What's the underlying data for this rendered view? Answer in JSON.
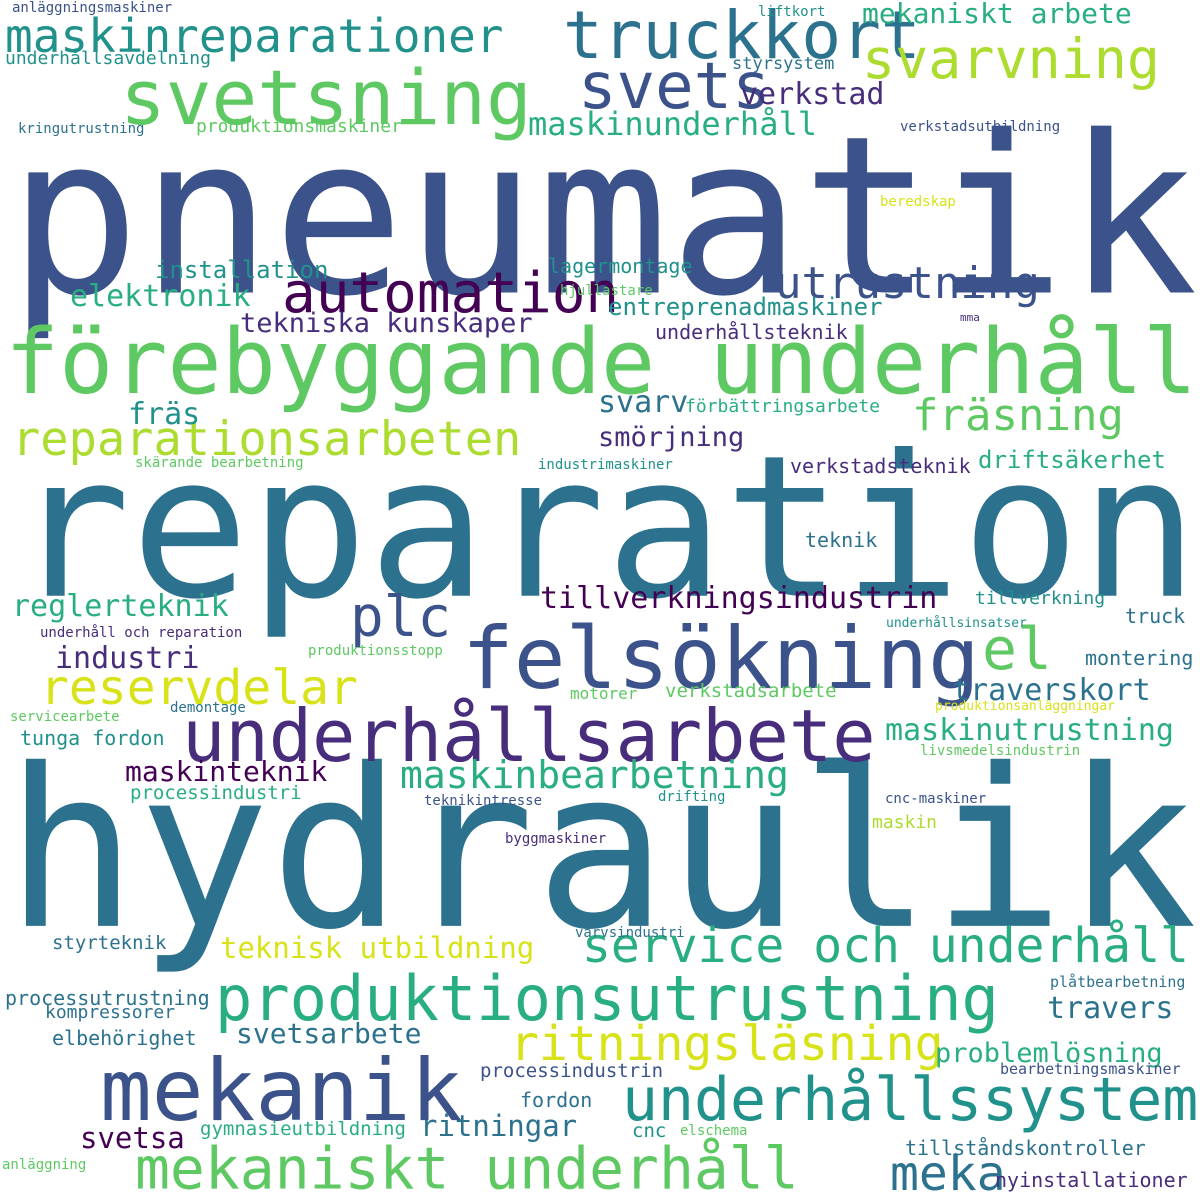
{
  "palette": {
    "d1": "#440154",
    "d2": "#472d7b",
    "d3": "#3b528b",
    "d4": "#2c728e",
    "d5": "#21918c",
    "d6": "#28ae80",
    "d7": "#5ec962",
    "d8": "#addc30",
    "d9": "#d8e219"
  },
  "words": [
    {
      "text": "pneumatik",
      "color": "d3"
    },
    {
      "text": "reparation",
      "color": "d4"
    },
    {
      "text": "hydraulik",
      "color": "d4"
    },
    {
      "text": "förebyggande underhåll",
      "color": "d7"
    },
    {
      "text": "felsökning",
      "color": "d3"
    },
    {
      "text": "underhållsarbete",
      "color": "d2"
    },
    {
      "text": "produktionsutrustning",
      "color": "d6"
    },
    {
      "text": "mekanik",
      "color": "d3"
    },
    {
      "text": "mekaniskt underhåll",
      "color": "d7"
    },
    {
      "text": "underhållssystem",
      "color": "d5"
    },
    {
      "text": "svetsning",
      "color": "d7"
    },
    {
      "text": "truckkort",
      "color": "d4"
    },
    {
      "text": "maskinreparationer",
      "color": "d5"
    },
    {
      "text": "svets",
      "color": "d3"
    },
    {
      "text": "svarvning",
      "color": "d8"
    },
    {
      "text": "automation",
      "color": "d1"
    },
    {
      "text": "utrustning",
      "color": "d3"
    },
    {
      "text": "reparationsarbeten",
      "color": "d8"
    },
    {
      "text": "fräsning",
      "color": "d7"
    },
    {
      "text": "plc",
      "color": "d3"
    },
    {
      "text": "el",
      "color": "d7"
    },
    {
      "text": "reservdelar",
      "color": "d9"
    },
    {
      "text": "service och underhåll",
      "color": "d6"
    },
    {
      "text": "ritningsläsning",
      "color": "d9"
    },
    {
      "text": "maskinbearbetning",
      "color": "d6"
    },
    {
      "text": "meka",
      "color": "d4"
    },
    {
      "text": "mekaniskt arbete",
      "color": "d6"
    },
    {
      "text": "verkstad",
      "color": "d2"
    },
    {
      "text": "maskinunderhåll",
      "color": "d6"
    },
    {
      "text": "elektronik",
      "color": "d6"
    },
    {
      "text": "installation",
      "color": "d5"
    },
    {
      "text": "lagermontage",
      "color": "d5"
    },
    {
      "text": "tekniska kunskaper",
      "color": "d2"
    },
    {
      "text": "entreprenadmaskiner",
      "color": "d5"
    },
    {
      "text": "underhållsteknik",
      "color": "d2"
    },
    {
      "text": "fräs",
      "color": "d5"
    },
    {
      "text": "svarv",
      "color": "d4"
    },
    {
      "text": "smörjning",
      "color": "d2"
    },
    {
      "text": "förbättringsarbete",
      "color": "d6"
    },
    {
      "text": "driftsäkerhet",
      "color": "d6"
    },
    {
      "text": "verkstadsteknik",
      "color": "d2"
    },
    {
      "text": "teknik",
      "color": "d4"
    },
    {
      "text": "tillverkningsindustrin",
      "color": "d1"
    },
    {
      "text": "reglerteknik",
      "color": "d6"
    },
    {
      "text": "industri",
      "color": "d2"
    },
    {
      "text": "traverskort",
      "color": "d4"
    },
    {
      "text": "maskinutrustning",
      "color": "d6"
    },
    {
      "text": "maskinteknik",
      "color": "d1"
    },
    {
      "text": "tunga fordon",
      "color": "d5"
    },
    {
      "text": "processindustri",
      "color": "d6"
    },
    {
      "text": "teknisk utbildning",
      "color": "d9"
    },
    {
      "text": "styrteknik",
      "color": "d4"
    },
    {
      "text": "processutrustning",
      "color": "d4"
    },
    {
      "text": "kompressorer",
      "color": "d4"
    },
    {
      "text": "elbehörighet",
      "color": "d4"
    },
    {
      "text": "svetsarbete",
      "color": "d4"
    },
    {
      "text": "travers",
      "color": "d4"
    },
    {
      "text": "problemlösning",
      "color": "d6"
    },
    {
      "text": "processindustrin",
      "color": "d3"
    },
    {
      "text": "fordon",
      "color": "d4"
    },
    {
      "text": "ritningar",
      "color": "d4"
    },
    {
      "text": "svetsa",
      "color": "d1"
    },
    {
      "text": "gymnasieutbildning",
      "color": "d6"
    },
    {
      "text": "cnc",
      "color": "d5"
    },
    {
      "text": "tillståndskontroller",
      "color": "d4"
    },
    {
      "text": "nyinstallationer",
      "color": "d2"
    },
    {
      "text": "verkstadsarbete",
      "color": "d7"
    },
    {
      "text": "montering",
      "color": "d4"
    },
    {
      "text": "truck",
      "color": "d4"
    },
    {
      "text": "tillverkning",
      "color": "d5"
    },
    {
      "text": "maskin",
      "color": "d8"
    },
    {
      "text": "motorer",
      "color": "d7"
    },
    {
      "text": "anläggningsmaskiner",
      "color": "d3"
    },
    {
      "text": "underhållsavdelning",
      "color": "d5"
    },
    {
      "text": "kringutrustning",
      "color": "d4"
    },
    {
      "text": "produktionsmaskiner",
      "color": "d7"
    },
    {
      "text": "liftkort",
      "color": "d5"
    },
    {
      "text": "styrsystem",
      "color": "d4"
    },
    {
      "text": "verkstadsutbildning",
      "color": "d3"
    },
    {
      "text": "beredskap",
      "color": "d9"
    },
    {
      "text": "hjullastare",
      "color": "d7"
    },
    {
      "text": "mma",
      "color": "d2"
    },
    {
      "text": "skärande bearbetning",
      "color": "d7"
    },
    {
      "text": "industrimaskiner",
      "color": "d5"
    },
    {
      "text": "underhåll och reparation",
      "color": "d2"
    },
    {
      "text": "underhållsinsatser",
      "color": "d5"
    },
    {
      "text": "produktionsstopp",
      "color": "d7"
    },
    {
      "text": "servicearbete",
      "color": "d7"
    },
    {
      "text": "demontage",
      "color": "d4"
    },
    {
      "text": "produktionsanläggningar",
      "color": "d9"
    },
    {
      "text": "livsmedelsindustrin",
      "color": "d7"
    },
    {
      "text": "teknikintresse",
      "color": "d3"
    },
    {
      "text": "drifting",
      "color": "d5"
    },
    {
      "text": "cnc-maskiner",
      "color": "d3"
    },
    {
      "text": "byggmaskiner",
      "color": "d2"
    },
    {
      "text": "varvsindustri",
      "color": "d4"
    },
    {
      "text": "plåtbearbetning",
      "color": "d4"
    },
    {
      "text": "bearbetningsmaskiner",
      "color": "d3"
    },
    {
      "text": "elschema",
      "color": "d7"
    },
    {
      "text": "anläggning",
      "color": "d7"
    }
  ]
}
